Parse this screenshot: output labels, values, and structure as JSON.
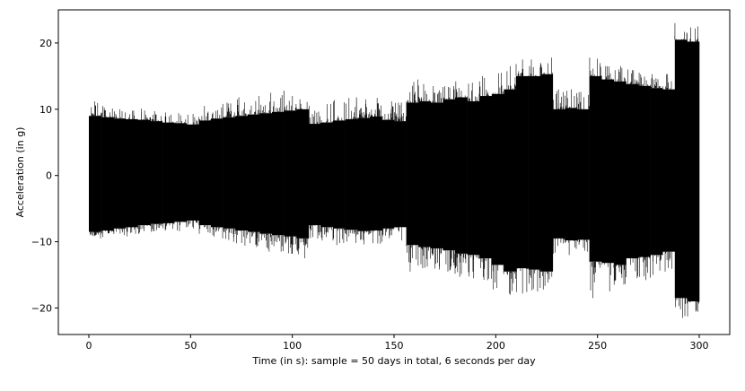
{
  "chart_data": {
    "type": "line",
    "title": "",
    "xlabel": "Time (in s): sample = 50 days in total, 6 seconds per day",
    "ylabel": "Acceleration (in g)",
    "xlim": [
      -15,
      315
    ],
    "ylim": [
      -24,
      25
    ],
    "x_ticks": [
      0,
      50,
      100,
      150,
      200,
      250,
      300
    ],
    "y_ticks": [
      -20,
      -10,
      0,
      10,
      20
    ],
    "grid": false,
    "legend": "none",
    "series_color": "#000000",
    "series": [
      {
        "x": [
          0,
          6,
          12,
          18,
          24,
          30,
          36,
          42,
          48,
          54,
          60,
          66,
          72,
          78,
          84,
          90,
          96,
          102,
          108,
          114,
          120,
          126,
          132,
          138,
          144,
          150,
          156,
          162,
          168,
          174,
          180,
          186,
          192,
          198,
          204,
          210,
          216,
          222,
          228,
          234,
          240,
          246,
          252,
          258,
          264,
          270,
          276,
          282,
          288,
          294
        ],
        "upper": [
          9,
          8.8,
          8.6,
          8.5,
          8.4,
          8.2,
          8.0,
          7.9,
          7.7,
          8.3,
          8.6,
          8.8,
          9.0,
          9.2,
          9.4,
          9.6,
          9.8,
          10.0,
          7.8,
          8.0,
          8.3,
          8.5,
          8.7,
          8.9,
          8.4,
          8.2,
          11.0,
          11.2,
          11.0,
          11.5,
          11.8,
          11.2,
          12.0,
          12.3,
          13.0,
          15.0,
          15.0,
          15.3,
          10.0,
          10.2,
          10.0,
          15.0,
          14.5,
          14.2,
          13.8,
          13.5,
          13.2,
          13.0,
          20.5,
          20.2
        ],
        "lower": [
          -8.5,
          -8.3,
          -8.0,
          -7.8,
          -7.5,
          -7.3,
          -7.2,
          -7.0,
          -6.8,
          -7.5,
          -7.8,
          -8.0,
          -8.3,
          -8.5,
          -8.8,
          -9.0,
          -9.2,
          -9.5,
          -7.5,
          -7.8,
          -8.0,
          -8.2,
          -8.4,
          -8.3,
          -8.0,
          -7.8,
          -10.5,
          -10.8,
          -11.0,
          -11.3,
          -11.8,
          -12.0,
          -12.5,
          -13.5,
          -14.5,
          -14.0,
          -14.2,
          -14.5,
          -9.5,
          -9.8,
          -9.7,
          -13.0,
          -13.2,
          -13.5,
          -12.5,
          -12.3,
          -12.0,
          -11.5,
          -18.5,
          -19.0
        ],
        "peak_max": [
          11.2,
          10.5,
          10.0,
          9.8,
          10.1,
          9.7,
          9.5,
          9.4,
          9.3,
          10.5,
          10.8,
          11.0,
          11.8,
          12.0,
          12.5,
          12.8,
          12.0,
          11.5,
          10.5,
          10.8,
          11.4,
          11.8,
          11.5,
          11.7,
          11.2,
          11.0,
          14.5,
          13.8,
          13.5,
          13.5,
          14.2,
          14.0,
          15.0,
          15.5,
          16.5,
          17.5,
          17.5,
          17.8,
          13.0,
          13.0,
          12.6,
          17.8,
          16.5,
          16.5,
          16.0,
          15.5,
          15.3,
          15.3,
          23.0,
          22.5
        ],
        "peak_min": [
          -9.5,
          -9.3,
          -9.0,
          -9.2,
          -8.8,
          -8.5,
          -8.3,
          -8.4,
          -8.0,
          -8.8,
          -9.5,
          -10.0,
          -10.6,
          -10.8,
          -11.5,
          -11.5,
          -11.8,
          -12.5,
          -9.5,
          -9.8,
          -10.5,
          -10.2,
          -10.4,
          -10.3,
          -10.0,
          -9.8,
          -14.5,
          -14.0,
          -14.2,
          -14.5,
          -15.3,
          -15.5,
          -15.8,
          -17.2,
          -18.0,
          -17.8,
          -17.5,
          -17.2,
          -11.8,
          -12.0,
          -11.5,
          -18.5,
          -17.5,
          -16.5,
          -15.5,
          -15.8,
          -15.0,
          -14.5,
          -21.5,
          -21.3
        ]
      }
    ]
  }
}
